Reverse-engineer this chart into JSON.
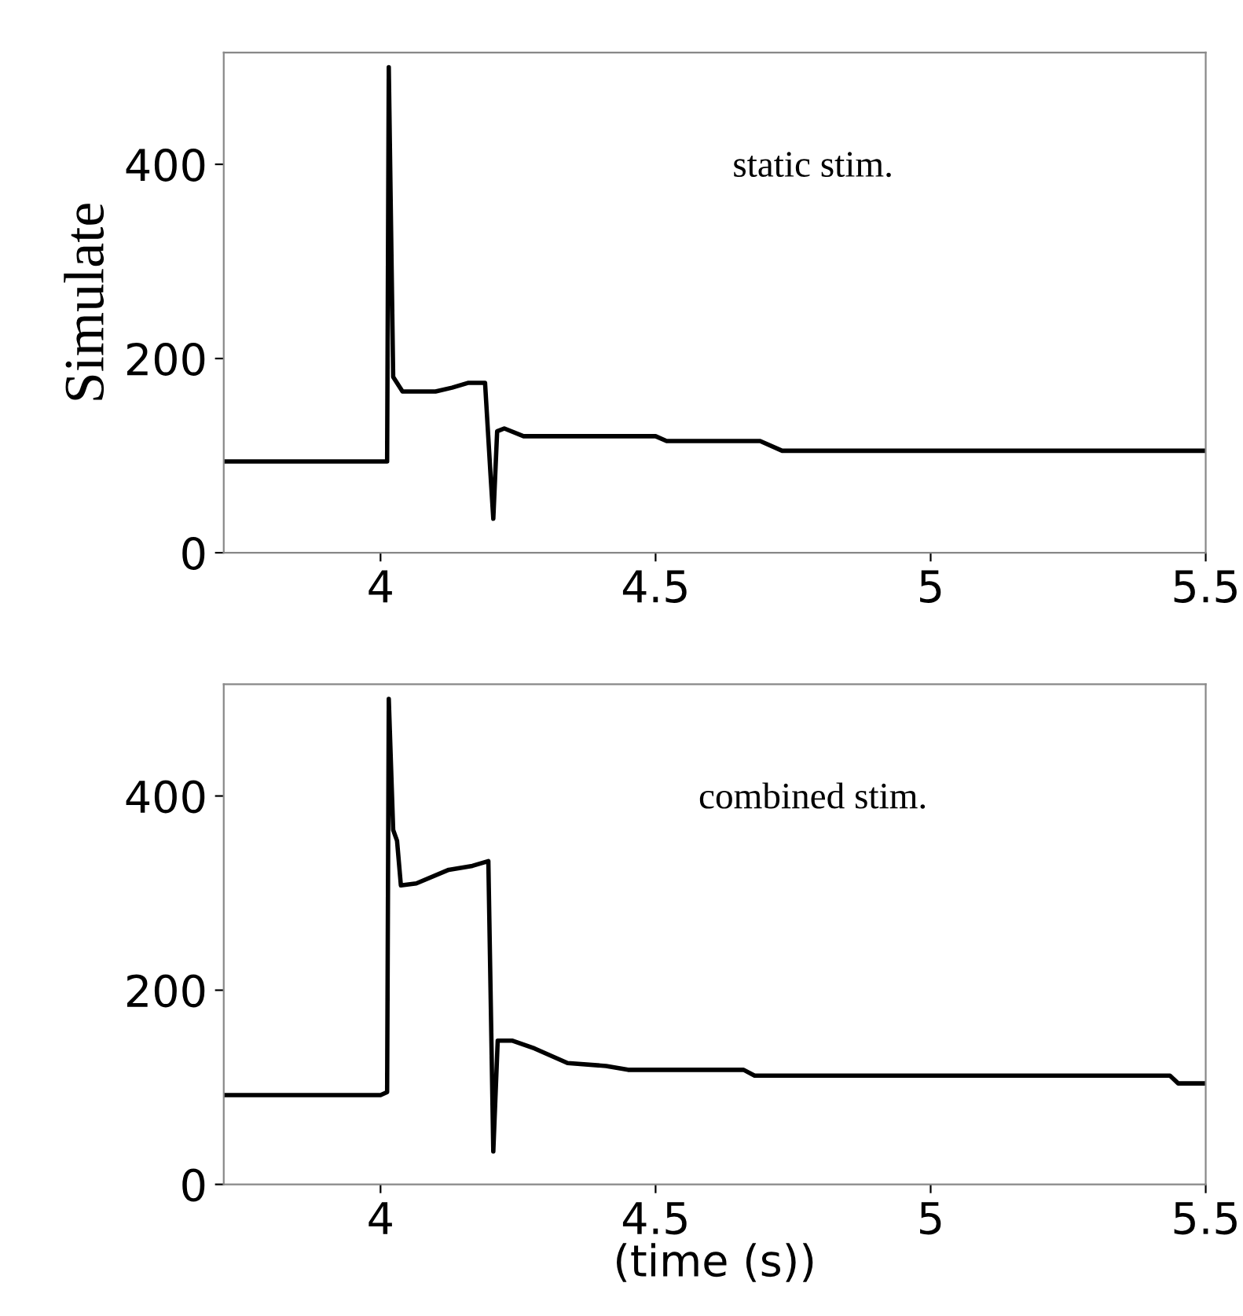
{
  "chart_data": [
    {
      "type": "line",
      "ylabel": "Simulate",
      "annotations": [
        "static stim."
      ],
      "xlim": [
        3.715,
        5.5
      ],
      "ylim": [
        0,
        515
      ],
      "xticks": [
        4,
        4.5,
        5,
        5.5
      ],
      "yticks": [
        0,
        200,
        400
      ],
      "grid": false,
      "legend": false,
      "series": [
        {
          "color": "#000000",
          "x": [
            3.715,
            4.0,
            4.012,
            4.015,
            4.023,
            4.04,
            4.1,
            4.13,
            4.16,
            4.19,
            4.2,
            4.205,
            4.212,
            4.225,
            4.26,
            4.5,
            4.52,
            4.69,
            4.73,
            5.5
          ],
          "values": [
            94,
            94,
            94,
            500,
            181,
            166,
            166,
            170,
            175,
            175,
            80,
            35,
            125,
            128,
            120,
            120,
            115,
            115,
            105,
            105
          ]
        }
      ]
    },
    {
      "type": "line",
      "xlabel": "(time (s))",
      "annotations": [
        "combined stim."
      ],
      "xlim": [
        3.715,
        5.5
      ],
      "ylim": [
        0,
        515
      ],
      "xticks": [
        4,
        4.5,
        5,
        5.5
      ],
      "yticks": [
        0,
        200,
        400
      ],
      "grid": false,
      "legend": false,
      "series": [
        {
          "color": "#000000",
          "x": [
            3.715,
            4.0,
            4.012,
            4.015,
            4.023,
            4.03,
            4.037,
            4.065,
            4.124,
            4.167,
            4.196,
            4.2,
            4.205,
            4.213,
            4.24,
            4.28,
            4.34,
            4.41,
            4.45,
            4.66,
            4.68,
            5.435,
            5.45,
            5.5
          ],
          "values": [
            92,
            92,
            95,
            500,
            365,
            354,
            308,
            310,
            324,
            328,
            333,
            200,
            34,
            148,
            148,
            140,
            125,
            122,
            118,
            118,
            112,
            112,
            104,
            104
          ]
        }
      ]
    }
  ]
}
